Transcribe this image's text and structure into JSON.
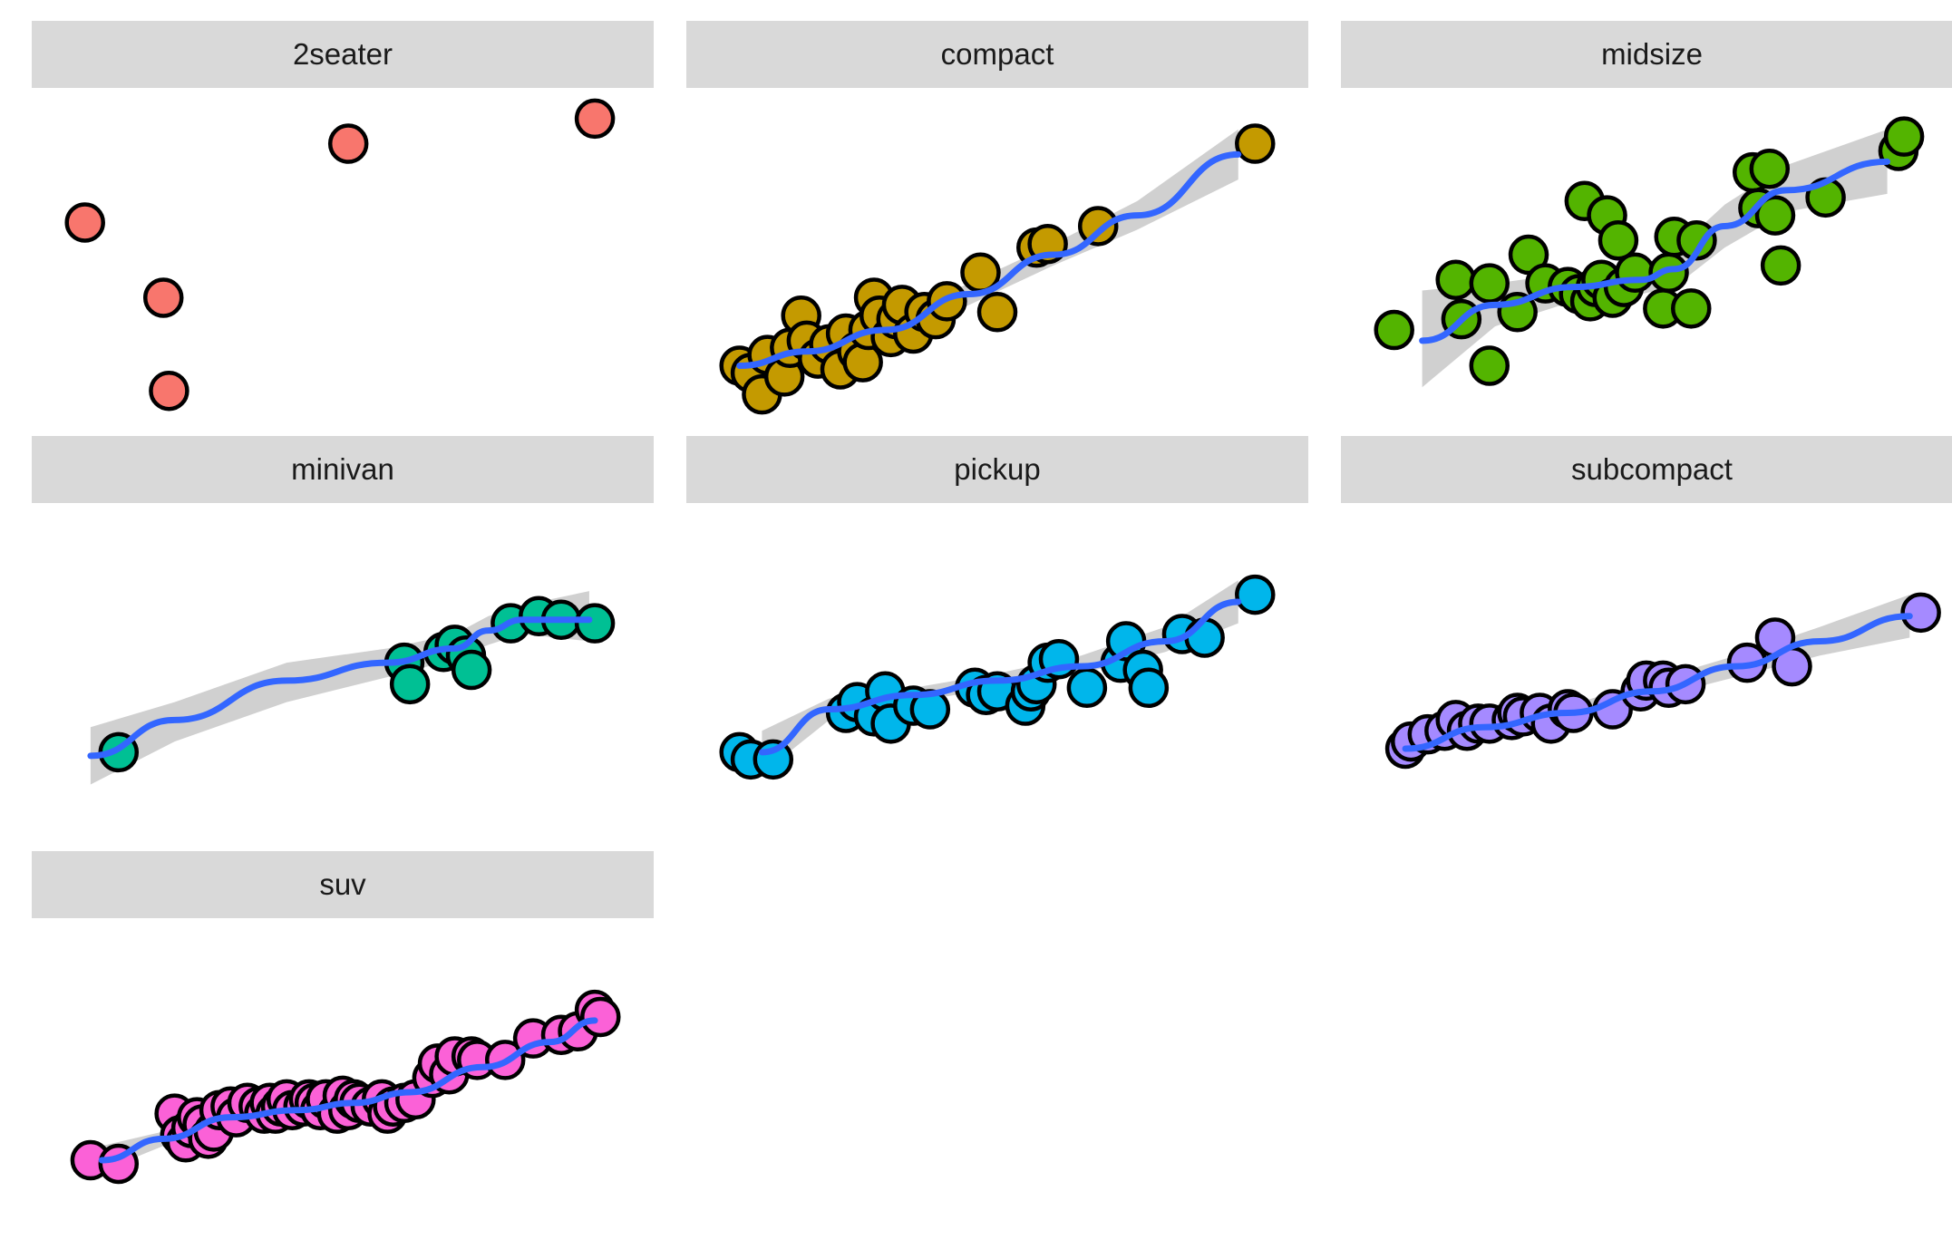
{
  "chart_data": {
    "type": "scatter",
    "layout": "facet_wrap",
    "ncol": 3,
    "smooth": "loess",
    "confidence_band": true,
    "axes_shown": false,
    "grid": false,
    "legend": "none",
    "colors": {
      "smooth_line": "#3366ff",
      "band": "#c8c8c8",
      "strip_background": "#d9d9d9",
      "point_outline": "#000000"
    },
    "x_range": [
      0,
      1
    ],
    "y_range": [
      0,
      1
    ],
    "panels": [
      {
        "label": "2seater",
        "color": "#f8766d",
        "points": [
          [
            0.04,
            0.51
          ],
          [
            0.18,
            0.3
          ],
          [
            0.19,
            0.04
          ],
          [
            0.51,
            0.73
          ],
          [
            0.95,
            0.8
          ]
        ],
        "smooth": [],
        "band": []
      },
      {
        "label": "compact",
        "color": "#c49a00",
        "points": [
          [
            0.04,
            0.11
          ],
          [
            0.06,
            0.09
          ],
          [
            0.08,
            0.03
          ],
          [
            0.09,
            0.14
          ],
          [
            0.12,
            0.08
          ],
          [
            0.13,
            0.16
          ],
          [
            0.15,
            0.25
          ],
          [
            0.16,
            0.18
          ],
          [
            0.18,
            0.13
          ],
          [
            0.2,
            0.17
          ],
          [
            0.22,
            0.1
          ],
          [
            0.23,
            0.2
          ],
          [
            0.25,
            0.15
          ],
          [
            0.26,
            0.12
          ],
          [
            0.27,
            0.21
          ],
          [
            0.28,
            0.3
          ],
          [
            0.29,
            0.25
          ],
          [
            0.31,
            0.19
          ],
          [
            0.32,
            0.24
          ],
          [
            0.33,
            0.28
          ],
          [
            0.35,
            0.2
          ],
          [
            0.37,
            0.26
          ],
          [
            0.39,
            0.24
          ],
          [
            0.41,
            0.29
          ],
          [
            0.47,
            0.37
          ],
          [
            0.5,
            0.26
          ],
          [
            0.57,
            0.44
          ],
          [
            0.59,
            0.45
          ],
          [
            0.68,
            0.5
          ],
          [
            0.96,
            0.73
          ]
        ],
        "smooth": [
          [
            0.04,
            0.11
          ],
          [
            0.16,
            0.15
          ],
          [
            0.3,
            0.21
          ],
          [
            0.45,
            0.31
          ],
          [
            0.6,
            0.42
          ],
          [
            0.75,
            0.53
          ],
          [
            0.93,
            0.7
          ]
        ],
        "band": [
          [
            0.04,
            0.07,
            0.15
          ],
          [
            0.16,
            0.12,
            0.18
          ],
          [
            0.3,
            0.18,
            0.24
          ],
          [
            0.45,
            0.28,
            0.34
          ],
          [
            0.6,
            0.39,
            0.45
          ],
          [
            0.75,
            0.49,
            0.57
          ],
          [
            0.93,
            0.63,
            0.77
          ]
        ]
      },
      {
        "label": "midsize",
        "color": "#53b400",
        "points": [
          [
            0.04,
            0.21
          ],
          [
            0.15,
            0.35
          ],
          [
            0.16,
            0.24
          ],
          [
            0.21,
            0.34
          ],
          [
            0.21,
            0.11
          ],
          [
            0.26,
            0.26
          ],
          [
            0.28,
            0.42
          ],
          [
            0.31,
            0.34
          ],
          [
            0.35,
            0.33
          ],
          [
            0.37,
            0.31
          ],
          [
            0.38,
            0.57
          ],
          [
            0.39,
            0.29
          ],
          [
            0.4,
            0.33
          ],
          [
            0.41,
            0.35
          ],
          [
            0.42,
            0.53
          ],
          [
            0.43,
            0.3
          ],
          [
            0.44,
            0.46
          ],
          [
            0.45,
            0.33
          ],
          [
            0.47,
            0.37
          ],
          [
            0.52,
            0.27
          ],
          [
            0.53,
            0.37
          ],
          [
            0.54,
            0.47
          ],
          [
            0.57,
            0.27
          ],
          [
            0.58,
            0.46
          ],
          [
            0.68,
            0.65
          ],
          [
            0.69,
            0.55
          ],
          [
            0.71,
            0.66
          ],
          [
            0.72,
            0.53
          ],
          [
            0.73,
            0.39
          ],
          [
            0.81,
            0.58
          ],
          [
            0.94,
            0.71
          ],
          [
            0.95,
            0.75
          ]
        ],
        "smooth": [
          [
            0.09,
            0.18
          ],
          [
            0.22,
            0.28
          ],
          [
            0.36,
            0.33
          ],
          [
            0.48,
            0.35
          ],
          [
            0.54,
            0.38
          ],
          [
            0.63,
            0.5
          ],
          [
            0.74,
            0.6
          ],
          [
            0.92,
            0.68
          ]
        ],
        "band": [
          [
            0.09,
            0.05,
            0.32
          ],
          [
            0.22,
            0.22,
            0.34
          ],
          [
            0.36,
            0.29,
            0.37
          ],
          [
            0.48,
            0.31,
            0.39
          ],
          [
            0.54,
            0.33,
            0.43
          ],
          [
            0.63,
            0.44,
            0.56
          ],
          [
            0.74,
            0.54,
            0.67
          ],
          [
            0.92,
            0.59,
            0.77
          ]
        ]
      },
      {
        "label": "minivan",
        "color": "#00c094",
        "points": [
          [
            0.1,
            0.19
          ],
          [
            0.61,
            0.44
          ],
          [
            0.62,
            0.38
          ],
          [
            0.68,
            0.47
          ],
          [
            0.7,
            0.49
          ],
          [
            0.72,
            0.46
          ],
          [
            0.73,
            0.42
          ],
          [
            0.8,
            0.55
          ],
          [
            0.85,
            0.57
          ],
          [
            0.89,
            0.56
          ],
          [
            0.95,
            0.55
          ]
        ],
        "smooth": [
          [
            0.05,
            0.18
          ],
          [
            0.2,
            0.28
          ],
          [
            0.4,
            0.39
          ],
          [
            0.58,
            0.44
          ],
          [
            0.7,
            0.48
          ],
          [
            0.76,
            0.53
          ],
          [
            0.82,
            0.56
          ],
          [
            0.94,
            0.56
          ]
        ],
        "band": [
          [
            0.05,
            0.1,
            0.26
          ],
          [
            0.2,
            0.22,
            0.33
          ],
          [
            0.4,
            0.33,
            0.44
          ],
          [
            0.58,
            0.4,
            0.48
          ],
          [
            0.7,
            0.45,
            0.52
          ],
          [
            0.76,
            0.49,
            0.57
          ],
          [
            0.82,
            0.52,
            0.6
          ],
          [
            0.94,
            0.5,
            0.64
          ]
        ]
      },
      {
        "label": "pickup",
        "color": "#00b6eb",
        "points": [
          [
            0.04,
            0.19
          ],
          [
            0.06,
            0.17
          ],
          [
            0.1,
            0.17
          ],
          [
            0.23,
            0.3
          ],
          [
            0.25,
            0.33
          ],
          [
            0.28,
            0.29
          ],
          [
            0.3,
            0.36
          ],
          [
            0.31,
            0.27
          ],
          [
            0.35,
            0.32
          ],
          [
            0.38,
            0.31
          ],
          [
            0.46,
            0.37
          ],
          [
            0.48,
            0.35
          ],
          [
            0.5,
            0.36
          ],
          [
            0.55,
            0.32
          ],
          [
            0.56,
            0.36
          ],
          [
            0.57,
            0.38
          ],
          [
            0.59,
            0.44
          ],
          [
            0.61,
            0.45
          ],
          [
            0.66,
            0.37
          ],
          [
            0.72,
            0.44
          ],
          [
            0.73,
            0.5
          ],
          [
            0.76,
            0.42
          ],
          [
            0.77,
            0.37
          ],
          [
            0.83,
            0.52
          ],
          [
            0.87,
            0.51
          ],
          [
            0.96,
            0.63
          ]
        ],
        "smooth": [
          [
            0.08,
            0.19
          ],
          [
            0.2,
            0.31
          ],
          [
            0.35,
            0.35
          ],
          [
            0.5,
            0.39
          ],
          [
            0.65,
            0.43
          ],
          [
            0.8,
            0.5
          ],
          [
            0.93,
            0.61
          ]
        ],
        "band": [
          [
            0.08,
            0.13,
            0.25
          ],
          [
            0.2,
            0.28,
            0.34
          ],
          [
            0.35,
            0.33,
            0.37
          ],
          [
            0.5,
            0.37,
            0.41
          ],
          [
            0.65,
            0.41,
            0.46
          ],
          [
            0.8,
            0.47,
            0.54
          ],
          [
            0.93,
            0.55,
            0.67
          ]
        ]
      },
      {
        "label": "subcompact",
        "color": "#a58aff",
        "points": [
          [
            0.06,
            0.2
          ],
          [
            0.07,
            0.22
          ],
          [
            0.1,
            0.24
          ],
          [
            0.13,
            0.25
          ],
          [
            0.15,
            0.28
          ],
          [
            0.17,
            0.25
          ],
          [
            0.19,
            0.27
          ],
          [
            0.21,
            0.27
          ],
          [
            0.25,
            0.28
          ],
          [
            0.26,
            0.3
          ],
          [
            0.27,
            0.29
          ],
          [
            0.3,
            0.3
          ],
          [
            0.32,
            0.27
          ],
          [
            0.35,
            0.31
          ],
          [
            0.36,
            0.3
          ],
          [
            0.43,
            0.31
          ],
          [
            0.48,
            0.36
          ],
          [
            0.49,
            0.39
          ],
          [
            0.52,
            0.39
          ],
          [
            0.53,
            0.37
          ],
          [
            0.56,
            0.38
          ],
          [
            0.67,
            0.44
          ],
          [
            0.72,
            0.51
          ],
          [
            0.75,
            0.43
          ],
          [
            0.98,
            0.58
          ]
        ],
        "smooth": [
          [
            0.06,
            0.2
          ],
          [
            0.2,
            0.26
          ],
          [
            0.35,
            0.3
          ],
          [
            0.5,
            0.36
          ],
          [
            0.65,
            0.43
          ],
          [
            0.8,
            0.5
          ],
          [
            0.96,
            0.57
          ]
        ],
        "band": [
          [
            0.06,
            0.17,
            0.23
          ],
          [
            0.2,
            0.24,
            0.28
          ],
          [
            0.35,
            0.29,
            0.32
          ],
          [
            0.5,
            0.34,
            0.39
          ],
          [
            0.65,
            0.4,
            0.46
          ],
          [
            0.8,
            0.46,
            0.54
          ],
          [
            0.96,
            0.51,
            0.63
          ]
        ]
      },
      {
        "label": "suv",
        "color": "#fb61d7",
        "points": [
          [
            0.05,
            0.21
          ],
          [
            0.1,
            0.2
          ],
          [
            0.2,
            0.34
          ],
          [
            0.21,
            0.28
          ],
          [
            0.22,
            0.26
          ],
          [
            0.23,
            0.3
          ],
          [
            0.24,
            0.33
          ],
          [
            0.25,
            0.31
          ],
          [
            0.26,
            0.27
          ],
          [
            0.27,
            0.29
          ],
          [
            0.28,
            0.35
          ],
          [
            0.3,
            0.36
          ],
          [
            0.31,
            0.33
          ],
          [
            0.33,
            0.37
          ],
          [
            0.35,
            0.36
          ],
          [
            0.36,
            0.34
          ],
          [
            0.37,
            0.37
          ],
          [
            0.38,
            0.34
          ],
          [
            0.39,
            0.36
          ],
          [
            0.4,
            0.38
          ],
          [
            0.41,
            0.35
          ],
          [
            0.43,
            0.36
          ],
          [
            0.44,
            0.38
          ],
          [
            0.45,
            0.37
          ],
          [
            0.46,
            0.35
          ],
          [
            0.47,
            0.38
          ],
          [
            0.49,
            0.34
          ],
          [
            0.5,
            0.39
          ],
          [
            0.51,
            0.35
          ],
          [
            0.52,
            0.38
          ],
          [
            0.53,
            0.37
          ],
          [
            0.55,
            0.36
          ],
          [
            0.57,
            0.38
          ],
          [
            0.58,
            0.34
          ],
          [
            0.59,
            0.36
          ],
          [
            0.61,
            0.37
          ],
          [
            0.63,
            0.38
          ],
          [
            0.66,
            0.44
          ],
          [
            0.67,
            0.48
          ],
          [
            0.69,
            0.45
          ],
          [
            0.7,
            0.5
          ],
          [
            0.73,
            0.5
          ],
          [
            0.74,
            0.49
          ],
          [
            0.79,
            0.49
          ],
          [
            0.84,
            0.55
          ],
          [
            0.89,
            0.56
          ],
          [
            0.92,
            0.57
          ],
          [
            0.95,
            0.63
          ],
          [
            0.96,
            0.61
          ]
        ],
        "smooth": [
          [
            0.07,
            0.21
          ],
          [
            0.18,
            0.27
          ],
          [
            0.3,
            0.33
          ],
          [
            0.42,
            0.35
          ],
          [
            0.52,
            0.37
          ],
          [
            0.62,
            0.4
          ],
          [
            0.75,
            0.47
          ],
          [
            0.87,
            0.54
          ],
          [
            0.95,
            0.6
          ]
        ],
        "band": [
          [
            0.07,
            0.18,
            0.25
          ],
          [
            0.18,
            0.25,
            0.29
          ],
          [
            0.3,
            0.32,
            0.35
          ],
          [
            0.42,
            0.34,
            0.36
          ],
          [
            0.52,
            0.36,
            0.38
          ],
          [
            0.62,
            0.39,
            0.42
          ],
          [
            0.75,
            0.45,
            0.49
          ],
          [
            0.87,
            0.52,
            0.57
          ],
          [
            0.95,
            0.56,
            0.64
          ]
        ]
      }
    ]
  }
}
